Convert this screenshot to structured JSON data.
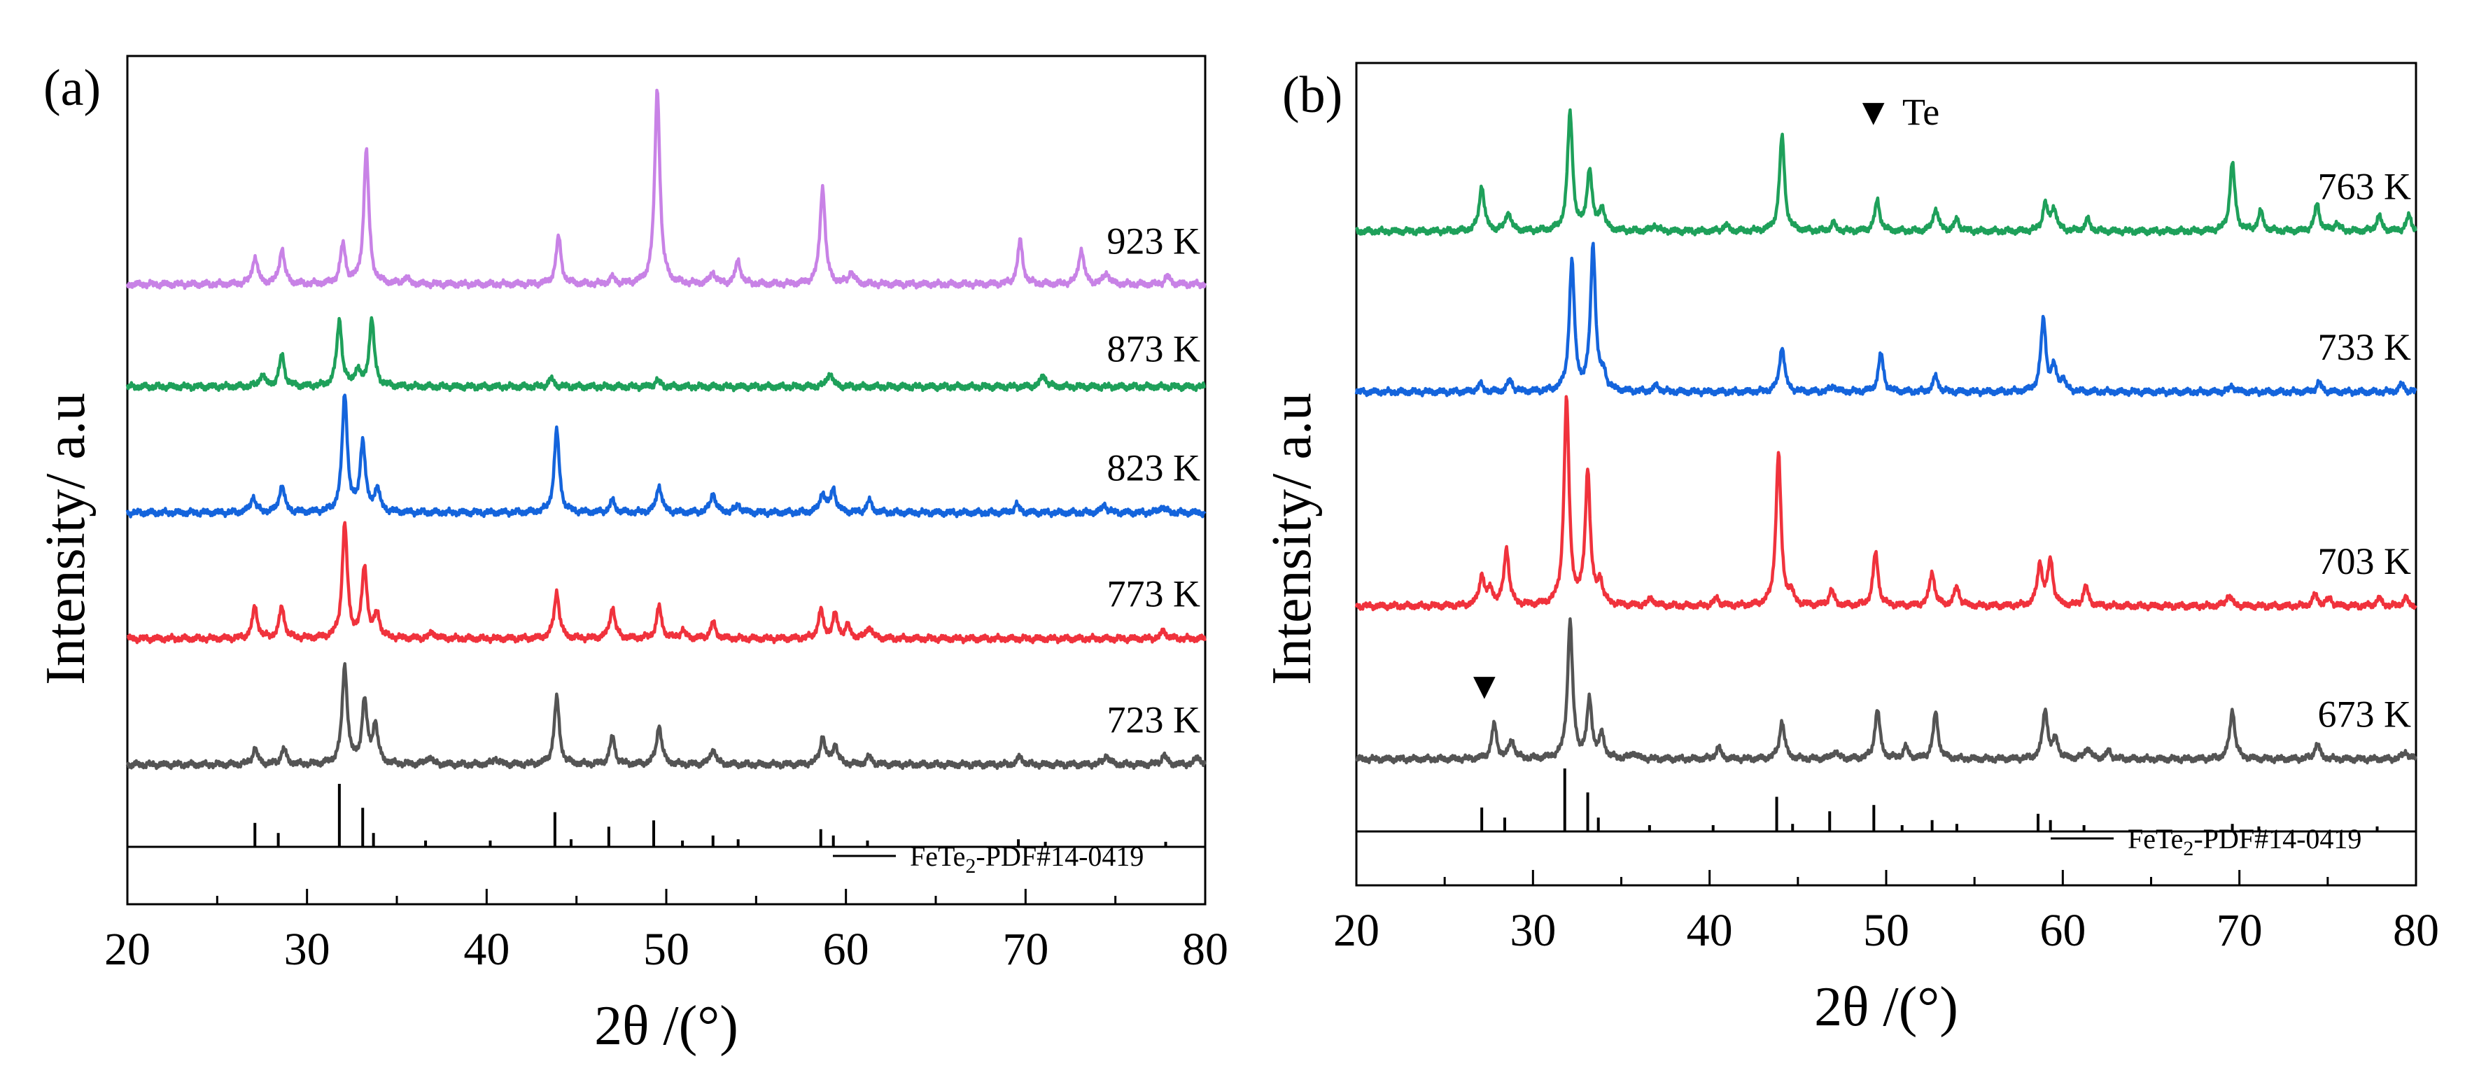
{
  "chart_data": [
    {
      "type": "line",
      "panel_label": "(a)",
      "xlabel": "2θ /(°)",
      "ylabel": "Intensity/ a.u",
      "xlim": [
        20,
        80
      ],
      "xticks": [
        20,
        30,
        40,
        50,
        60,
        70,
        80
      ],
      "yticks": "none",
      "grid": false,
      "reference": {
        "label": "FeTe",
        "label_sub": "2",
        "label_rest": "-PDF#14-0419",
        "lines": [
          [
            27.1,
            0.38
          ],
          [
            28.4,
            0.22
          ],
          [
            31.8,
            1.0
          ],
          [
            33.1,
            0.62
          ],
          [
            33.7,
            0.22
          ],
          [
            36.6,
            0.1
          ],
          [
            40.2,
            0.1
          ],
          [
            43.8,
            0.55
          ],
          [
            44.7,
            0.12
          ],
          [
            46.8,
            0.32
          ],
          [
            49.3,
            0.42
          ],
          [
            50.9,
            0.1
          ],
          [
            52.6,
            0.18
          ],
          [
            54.0,
            0.12
          ],
          [
            58.6,
            0.28
          ],
          [
            59.3,
            0.18
          ],
          [
            61.2,
            0.1
          ],
          [
            69.6,
            0.12
          ],
          [
            71.1,
            0.08
          ],
          [
            77.8,
            0.08
          ]
        ]
      },
      "series": [
        {
          "name": "723 K",
          "color": "#545454",
          "baseline": 0.1,
          "peaks": [
            [
              27.1,
              0.02
            ],
            [
              28.7,
              0.02
            ],
            [
              32.1,
              0.125
            ],
            [
              33.2,
              0.08
            ],
            [
              33.8,
              0.05
            ],
            [
              36.8,
              0.01
            ],
            [
              40.5,
              0.008
            ],
            [
              43.9,
              0.085
            ],
            [
              47.0,
              0.035
            ],
            [
              49.6,
              0.05
            ],
            [
              52.6,
              0.02
            ],
            [
              58.7,
              0.035
            ],
            [
              59.4,
              0.025
            ],
            [
              61.3,
              0.01
            ],
            [
              69.7,
              0.01
            ],
            [
              74.5,
              0.012
            ],
            [
              77.7,
              0.012
            ],
            [
              79.6,
              0.01
            ]
          ]
        },
        {
          "name": "773 K",
          "color": "#f0323c",
          "baseline": 0.26,
          "peaks": [
            [
              27.1,
              0.04
            ],
            [
              28.6,
              0.04
            ],
            [
              32.1,
              0.145
            ],
            [
              33.2,
              0.09
            ],
            [
              33.9,
              0.03
            ],
            [
              37.0,
              0.008
            ],
            [
              43.9,
              0.06
            ],
            [
              47.0,
              0.04
            ],
            [
              49.6,
              0.04
            ],
            [
              50.9,
              0.01
            ],
            [
              52.6,
              0.02
            ],
            [
              58.6,
              0.035
            ],
            [
              59.4,
              0.03
            ],
            [
              60.1,
              0.015
            ],
            [
              61.3,
              0.015
            ],
            [
              77.7,
              0.01
            ]
          ]
        },
        {
          "name": "823 K",
          "color": "#1464dc",
          "baseline": 0.42,
          "peaks": [
            [
              27.0,
              0.02
            ],
            [
              28.6,
              0.035
            ],
            [
              32.1,
              0.15
            ],
            [
              33.1,
              0.09
            ],
            [
              33.9,
              0.03
            ],
            [
              43.9,
              0.105
            ],
            [
              47.0,
              0.015
            ],
            [
              49.6,
              0.035
            ],
            [
              52.6,
              0.025
            ],
            [
              54.0,
              0.01
            ],
            [
              58.7,
              0.025
            ],
            [
              59.3,
              0.03
            ],
            [
              61.3,
              0.015
            ],
            [
              69.5,
              0.01
            ],
            [
              74.4,
              0.01
            ],
            [
              77.6,
              0.008
            ]
          ]
        },
        {
          "name": "873 K",
          "color": "#1ea05a",
          "baseline": 0.58,
          "peaks": [
            [
              27.5,
              0.015
            ],
            [
              28.6,
              0.04
            ],
            [
              31.8,
              0.085
            ],
            [
              32.8,
              0.02
            ],
            [
              33.6,
              0.085
            ],
            [
              43.6,
              0.01
            ],
            [
              49.5,
              0.008
            ],
            [
              59.1,
              0.018
            ],
            [
              71.0,
              0.015
            ]
          ]
        },
        {
          "name": "923 K",
          "color": "#c882e6",
          "baseline": 0.71,
          "peaks": [
            [
              27.1,
              0.035
            ],
            [
              28.6,
              0.045
            ],
            [
              32.0,
              0.05
            ],
            [
              33.3,
              0.17
            ],
            [
              35.5,
              0.008
            ],
            [
              44.0,
              0.06
            ],
            [
              47.0,
              0.008
            ],
            [
              49.5,
              0.25
            ],
            [
              52.6,
              0.015
            ],
            [
              54.0,
              0.03
            ],
            [
              58.7,
              0.125
            ],
            [
              60.3,
              0.015
            ],
            [
              69.7,
              0.055
            ],
            [
              73.1,
              0.045
            ],
            [
              74.5,
              0.015
            ],
            [
              77.9,
              0.01
            ]
          ]
        }
      ]
    },
    {
      "type": "line",
      "panel_label": "(b)",
      "xlabel": "2θ /(°)",
      "ylabel": "Intensity/ a.u",
      "xlim": [
        20,
        80
      ],
      "xticks": [
        20,
        30,
        40,
        50,
        60,
        70,
        80
      ],
      "yticks": "none",
      "grid": false,
      "marker_legend": {
        "symbol": "▼",
        "label": "Te"
      },
      "marker_positions": [
        27.8
      ],
      "reference": {
        "label": "FeTe",
        "label_sub": "2",
        "label_rest": "-PDF#14-0419",
        "lines": [
          [
            27.1,
            0.38
          ],
          [
            28.4,
            0.22
          ],
          [
            31.8,
            1.0
          ],
          [
            33.1,
            0.62
          ],
          [
            33.7,
            0.22
          ],
          [
            36.6,
            0.1
          ],
          [
            40.2,
            0.1
          ],
          [
            43.8,
            0.55
          ],
          [
            44.7,
            0.12
          ],
          [
            46.8,
            0.32
          ],
          [
            49.3,
            0.42
          ],
          [
            50.9,
            0.1
          ],
          [
            52.6,
            0.18
          ],
          [
            54.0,
            0.12
          ],
          [
            58.6,
            0.28
          ],
          [
            59.3,
            0.18
          ],
          [
            61.2,
            0.1
          ],
          [
            69.6,
            0.12
          ],
          [
            71.1,
            0.08
          ],
          [
            77.8,
            0.08
          ]
        ]
      },
      "series": [
        {
          "name": "673 K",
          "color": "#545454",
          "baseline": 0.09,
          "peaks": [
            [
              27.8,
              0.045
            ],
            [
              28.8,
              0.025
            ],
            [
              32.1,
              0.18
            ],
            [
              33.2,
              0.075
            ],
            [
              33.9,
              0.03
            ],
            [
              35.7,
              0.008
            ],
            [
              40.5,
              0.015
            ],
            [
              44.1,
              0.05
            ],
            [
              47.1,
              0.01
            ],
            [
              49.5,
              0.065
            ],
            [
              51.1,
              0.015
            ],
            [
              52.8,
              0.06
            ],
            [
              59.0,
              0.065
            ],
            [
              59.6,
              0.025
            ],
            [
              61.4,
              0.015
            ],
            [
              62.6,
              0.01
            ],
            [
              69.6,
              0.065
            ],
            [
              74.4,
              0.02
            ],
            [
              79.4,
              0.01
            ]
          ]
        },
        {
          "name": "703 K",
          "color": "#f0323c",
          "baseline": 0.29,
          "peaks": [
            [
              27.1,
              0.04
            ],
            [
              27.6,
              0.02
            ],
            [
              28.5,
              0.075
            ],
            [
              31.9,
              0.27
            ],
            [
              33.1,
              0.175
            ],
            [
              33.8,
              0.03
            ],
            [
              36.7,
              0.01
            ],
            [
              40.4,
              0.01
            ],
            [
              43.9,
              0.2
            ],
            [
              44.6,
              0.015
            ],
            [
              46.9,
              0.02
            ],
            [
              49.4,
              0.07
            ],
            [
              52.6,
              0.045
            ],
            [
              54.0,
              0.025
            ],
            [
              58.7,
              0.055
            ],
            [
              59.3,
              0.06
            ],
            [
              61.3,
              0.025
            ],
            [
              69.4,
              0.015
            ],
            [
              74.3,
              0.015
            ],
            [
              75.1,
              0.01
            ],
            [
              77.9,
              0.01
            ],
            [
              79.4,
              0.01
            ]
          ]
        },
        {
          "name": "733 K",
          "color": "#1464dc",
          "baseline": 0.57,
          "peaks": [
            [
              27.0,
              0.01
            ],
            [
              28.7,
              0.015
            ],
            [
              32.2,
              0.17
            ],
            [
              33.4,
              0.19
            ],
            [
              34.0,
              0.02
            ],
            [
              37.0,
              0.008
            ],
            [
              44.1,
              0.06
            ],
            [
              47.0,
              0.008
            ],
            [
              49.7,
              0.05
            ],
            [
              52.8,
              0.02
            ],
            [
              58.9,
              0.095
            ],
            [
              59.5,
              0.03
            ],
            [
              60.0,
              0.015
            ],
            [
              69.6,
              0.008
            ],
            [
              74.5,
              0.012
            ],
            [
              79.2,
              0.01
            ]
          ]
        },
        {
          "name": "763 K",
          "color": "#1ea05a",
          "baseline": 0.78,
          "peaks": [
            [
              27.1,
              0.06
            ],
            [
              28.6,
              0.025
            ],
            [
              32.1,
              0.155
            ],
            [
              33.2,
              0.08
            ],
            [
              33.9,
              0.03
            ],
            [
              36.9,
              0.008
            ],
            [
              40.9,
              0.008
            ],
            [
              44.1,
              0.125
            ],
            [
              47.0,
              0.01
            ],
            [
              49.5,
              0.04
            ],
            [
              52.8,
              0.03
            ],
            [
              54.0,
              0.015
            ],
            [
              59.0,
              0.035
            ],
            [
              59.5,
              0.03
            ],
            [
              61.4,
              0.015
            ],
            [
              69.6,
              0.09
            ],
            [
              71.2,
              0.025
            ],
            [
              74.4,
              0.035
            ],
            [
              75.5,
              0.01
            ],
            [
              77.9,
              0.02
            ],
            [
              79.6,
              0.02
            ]
          ]
        }
      ]
    }
  ]
}
